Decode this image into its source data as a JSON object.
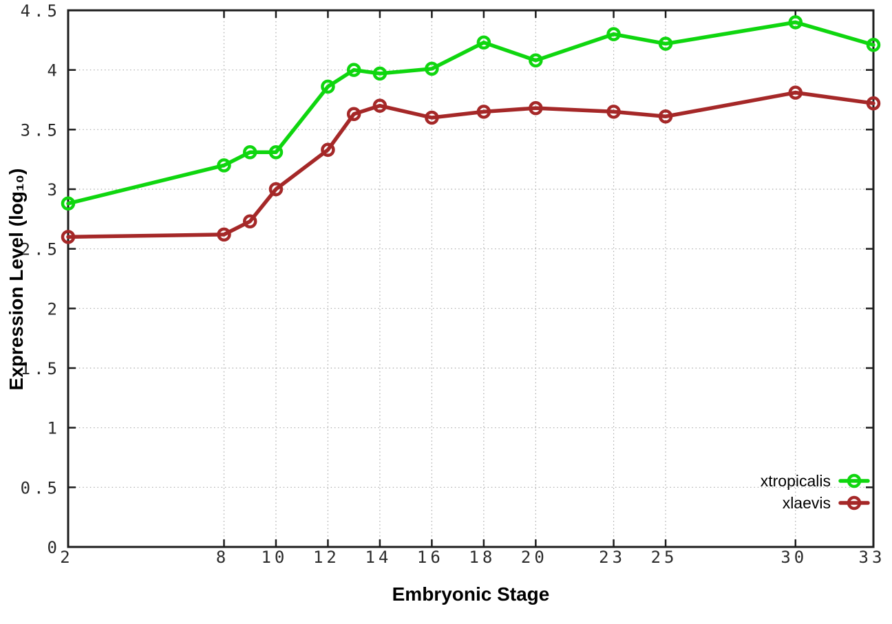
{
  "chart_data": {
    "type": "line",
    "title": "",
    "xlabel": "Embryonic Stage",
    "ylabel": "Expression Level (log₁₀)",
    "xlim": [
      2,
      33
    ],
    "ylim": [
      0,
      4.5
    ],
    "grid": true,
    "legend_position": "inside-bottom-right",
    "x": [
      2,
      8,
      9,
      10,
      12,
      13,
      14,
      16,
      18,
      20,
      23,
      25,
      30,
      33
    ],
    "xticks": {
      "values": [
        2,
        8,
        10,
        12,
        14,
        16,
        18,
        20,
        23,
        25,
        30,
        33
      ],
      "labels": [
        "2",
        "8",
        "10",
        "12",
        "14",
        "16",
        "18",
        "20",
        "23",
        "25",
        "30",
        "33"
      ]
    },
    "yticks": {
      "values": [
        0,
        0.5,
        1,
        1.5,
        2,
        2.5,
        3,
        3.5,
        4,
        4.5
      ],
      "labels": [
        "0",
        "0.5",
        "1",
        "1.5",
        "2",
        "2.5",
        "3",
        "3.5",
        "4",
        "4.5"
      ]
    },
    "series": [
      {
        "name": "xtropicalis",
        "color": "#0fd60f",
        "marker": "open-circle",
        "values": [
          2.88,
          3.2,
          3.31,
          3.31,
          3.86,
          4.0,
          3.97,
          4.01,
          4.23,
          4.08,
          4.3,
          4.22,
          4.4,
          4.21
        ]
      },
      {
        "name": "xlaevis",
        "color": "#a52828",
        "marker": "open-circle",
        "values": [
          2.6,
          2.62,
          2.73,
          3.0,
          3.33,
          3.63,
          3.7,
          3.6,
          3.65,
          3.68,
          3.65,
          3.61,
          3.81,
          3.72
        ]
      }
    ]
  },
  "styles": {
    "background": "#ffffff",
    "axis_color": "#1c1c1c",
    "grid_color": "#a8a8a8",
    "tick_label_color": "#2a2a2a",
    "legend_text_color": "#000000"
  }
}
